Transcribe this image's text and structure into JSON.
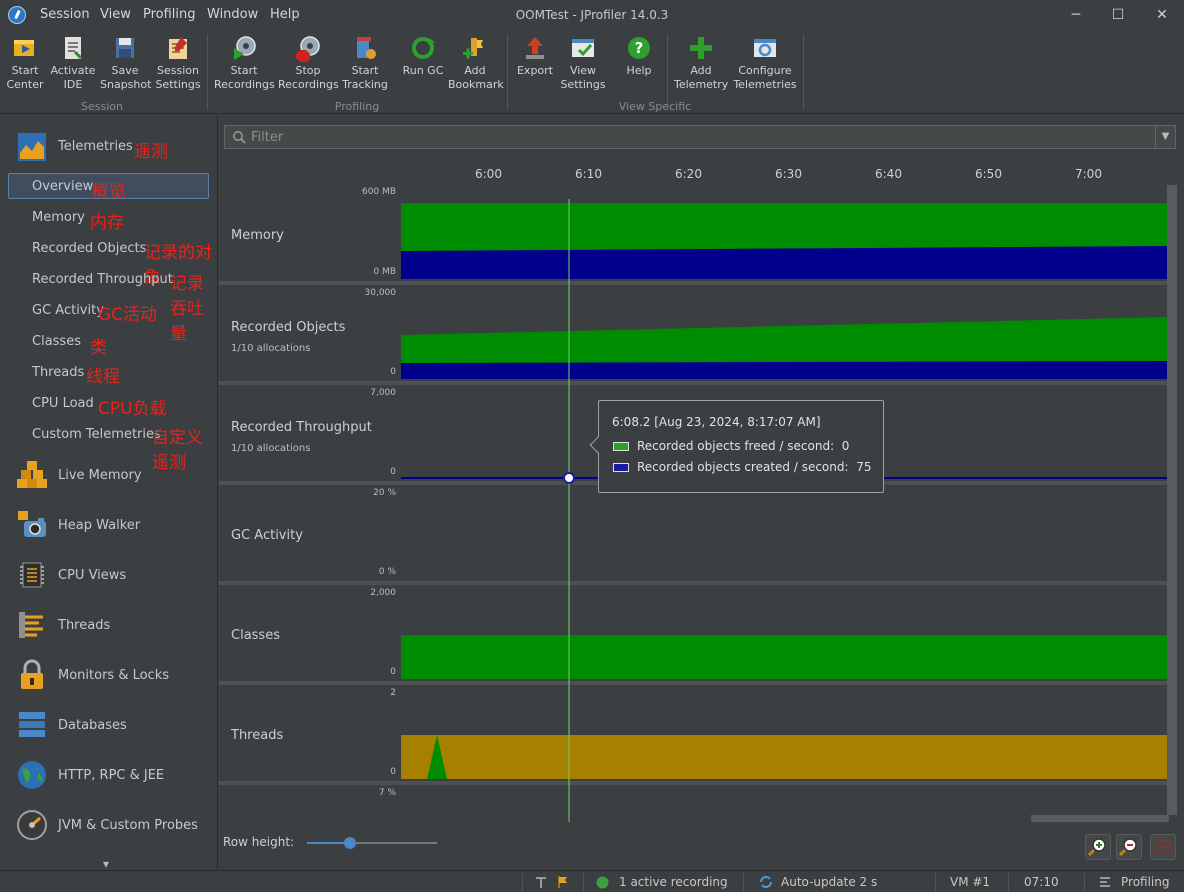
{
  "window": {
    "title": "OOMTest - JProfiler 14.0.3",
    "menu": [
      "Session",
      "View",
      "Profiling",
      "Window",
      "Help"
    ],
    "controls": {
      "minimize": "─",
      "maximize": "☐",
      "close": "✕"
    }
  },
  "toolbar": {
    "groups": {
      "session": "Session",
      "profiling": "Profiling",
      "view_specific": "View Specific"
    },
    "buttons": {
      "start_center": [
        "Start",
        "Center"
      ],
      "activate_ide": [
        "Activate",
        "IDE"
      ],
      "save_snapshot": [
        "Save",
        "Snapshot"
      ],
      "session_settings": [
        "Session",
        "Settings"
      ],
      "start_recordings": [
        "Start",
        "Recordings"
      ],
      "stop_recordings": [
        "Stop",
        "Recordings"
      ],
      "start_tracking": [
        "Start",
        "Tracking"
      ],
      "run_gc": [
        "Run GC"
      ],
      "add_bookmark": [
        "Add",
        "Bookmark"
      ],
      "export": [
        "Export"
      ],
      "view_settings": [
        "View",
        "Settings"
      ],
      "help": [
        "Help"
      ],
      "add_telemetry": [
        "Add",
        "Telemetry"
      ],
      "configure_telemetries": [
        "Configure",
        "Telemetries"
      ]
    }
  },
  "sidebar": {
    "telemetries": {
      "label": "Telemetries",
      "annotation": "遥测"
    },
    "telemetry_items": [
      {
        "label": "Overview",
        "annotation": "概览"
      },
      {
        "label": "Memory",
        "annotation": "内存"
      },
      {
        "label": "Recorded Objects",
        "annotation": "记录的对象"
      },
      {
        "label": "Recorded Throughput",
        "annotation": "记录吞吐量"
      },
      {
        "label": "GC Activity",
        "annotation": "GC活动"
      },
      {
        "label": "Classes",
        "annotation": "类"
      },
      {
        "label": "Threads",
        "annotation": "线程"
      },
      {
        "label": "CPU Load",
        "annotation": "CPU负载"
      },
      {
        "label": "Custom Telemetries",
        "annotation": "自定义遥测"
      }
    ],
    "sections": [
      "Live Memory",
      "Heap Walker",
      "CPU Views",
      "Threads",
      "Monitors & Locks",
      "Databases",
      "HTTP, RPC & JEE",
      "JVM & Custom Probes"
    ],
    "more": "▾"
  },
  "filter": {
    "placeholder": "Filter",
    "dropdown": "▼"
  },
  "timeline": {
    "time_labels": [
      "6:00",
      "6:10",
      "6:20",
      "6:30",
      "6:40",
      "6:50",
      "7:00"
    ],
    "tracks": [
      {
        "title": "Memory",
        "subtitle": "",
        "y_max": "600 MB",
        "y_min": "0 MB"
      },
      {
        "title": "Recorded Objects",
        "subtitle": "1/10 allocations",
        "y_max": "30,000",
        "y_min": "0"
      },
      {
        "title": "Recorded Throughput",
        "subtitle": "1/10 allocations",
        "y_max": "7,000",
        "y_min": "0"
      },
      {
        "title": "GC Activity",
        "subtitle": "",
        "y_max": "20 %",
        "y_min": "0 %"
      },
      {
        "title": "Classes",
        "subtitle": "",
        "y_max": "2,000",
        "y_min": "0"
      },
      {
        "title": "Threads",
        "subtitle": "",
        "y_max": "2",
        "y_min": "0"
      },
      {
        "title": "",
        "subtitle": "",
        "y_max": "7 %",
        "y_min": ""
      }
    ]
  },
  "tooltip": {
    "time": "6:08.2 [Aug 23, 2024, 8:17:07 AM]",
    "rows": [
      {
        "label": "Recorded objects freed / second:",
        "value": "0",
        "color": "#2ea02e"
      },
      {
        "label": "Recorded objects created / second:",
        "value": "75",
        "color": "#1a1aa0"
      }
    ]
  },
  "bottom": {
    "row_height_label": "Row height:",
    "row_height_value": 0.33
  },
  "statusbar": {
    "recording": "1 active recording",
    "autoupdate": "Auto-update 2 s",
    "vm": "VM #1",
    "time": "07:10",
    "mode": "Profiling"
  },
  "colors": {
    "green": "#008c00",
    "blue": "#00008c",
    "gold": "#a88000",
    "annotation": "#e8231c",
    "cursor": "#6fd06f"
  }
}
